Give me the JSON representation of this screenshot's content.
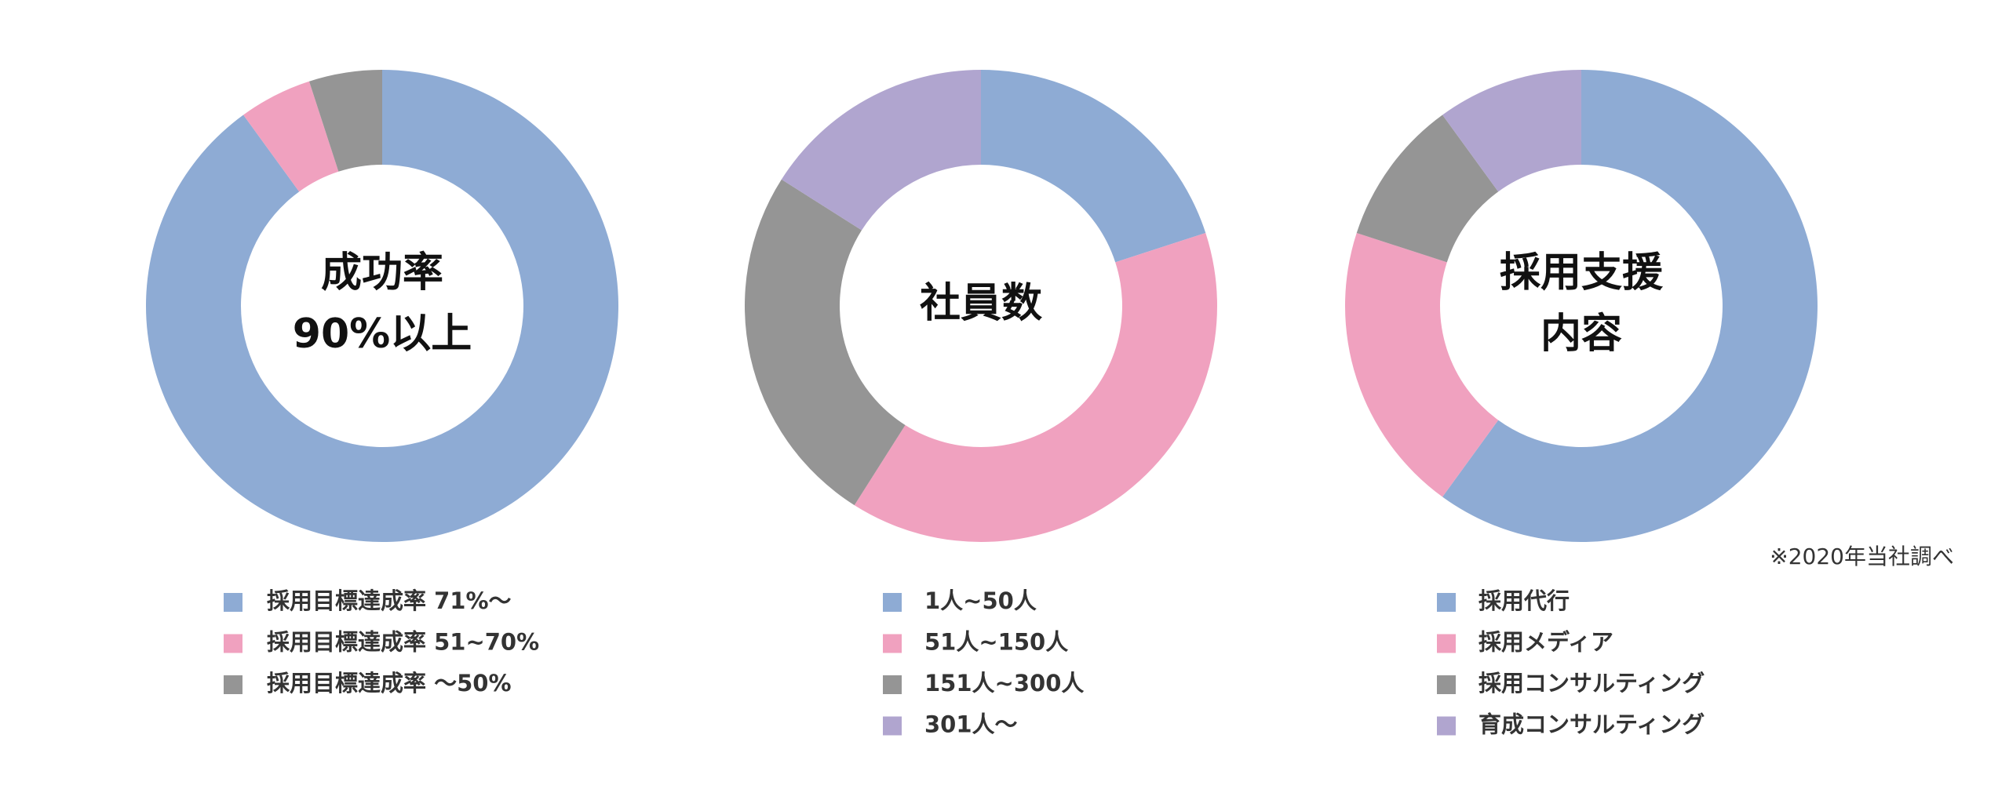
{
  "chart_data": [
    {
      "type": "donut",
      "center_label": [
        "成功率",
        "90%以上"
      ],
      "categories": [
        "採用目標達成率 71%〜",
        "採用目標達成率 51~70%",
        "採用目標達成率 〜50%"
      ],
      "values": [
        90,
        5,
        5
      ],
      "colors": [
        "#8eabd4",
        "#f0a1bf",
        "#959595"
      ]
    },
    {
      "type": "donut",
      "center_label": [
        "社員数"
      ],
      "categories": [
        "1人~50人",
        "51人~150人",
        "151人~300人",
        "301人〜"
      ],
      "values": [
        20,
        39,
        25,
        16
      ],
      "colors": [
        "#8eabd4",
        "#f0a1bf",
        "#959595",
        "#b0a5cf"
      ]
    },
    {
      "type": "donut",
      "center_label": [
        "採用支援",
        "内容"
      ],
      "categories": [
        "採用代行",
        "採用メディア",
        "採用コンサルティング",
        "育成コンサルティング"
      ],
      "values": [
        60,
        20,
        10,
        10
      ],
      "colors": [
        "#8eabd4",
        "#f0a1bf",
        "#959595",
        "#b0a5cf"
      ],
      "note": "※2020年当社調べ"
    }
  ]
}
